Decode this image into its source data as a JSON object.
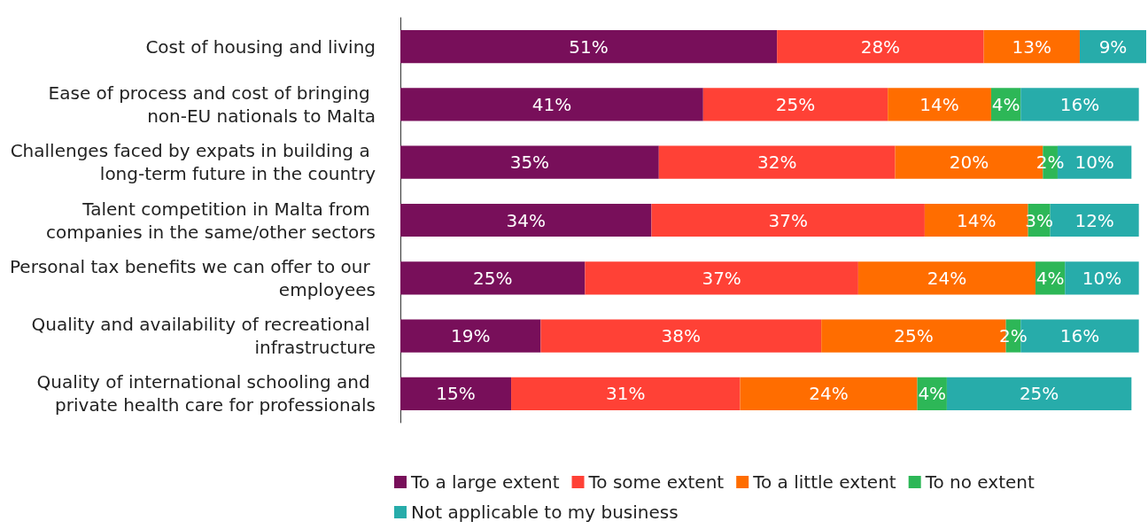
{
  "chart_data": {
    "type": "bar",
    "orientation": "horizontal",
    "stacked": true,
    "legend": "bottom",
    "categories": [
      "Cost of housing and living",
      "Ease of process and cost of bringing non-EU nationals to Malta",
      "Challenges faced by expats in building a long-term future in the country",
      "Talent competition in Malta from companies in the same/other sectors",
      "Personal tax benefits we can offer to our employees",
      "Quality and availability of recreational infrastructure",
      "Quality of international schooling and private health care for professionals"
    ],
    "series": [
      {
        "name": "To a large extent",
        "color": "#780f5a",
        "values": [
          51,
          41,
          35,
          34,
          25,
          19,
          15
        ],
        "value_labels": [
          "51%",
          "41%",
          "35%",
          "34%",
          "25%",
          "19%",
          "15%"
        ]
      },
      {
        "name": "To some extent",
        "color": "#ff4136",
        "values": [
          28,
          25,
          32,
          37,
          37,
          38,
          31
        ],
        "value_labels": [
          "28%",
          "25%",
          "32%",
          "37%",
          "37%",
          "38%",
          "31%"
        ]
      },
      {
        "name": "To a little extent",
        "color": "#ff6d00",
        "values": [
          13,
          14,
          20,
          14,
          24,
          25,
          24
        ],
        "value_labels": [
          "13%",
          "14%",
          "20%",
          "14%",
          "24%",
          "25%",
          "24%"
        ]
      },
      {
        "name": "To no extent",
        "color": "#2db757",
        "values": [
          null,
          4,
          2,
          3,
          4,
          2,
          4
        ],
        "value_labels": [
          null,
          "4%",
          "2%",
          "3%",
          "4%",
          "2%",
          "4%"
        ]
      },
      {
        "name": "Not applicable to my business",
        "color": "#27acaa",
        "values": [
          9,
          16,
          10,
          12,
          10,
          16,
          25
        ],
        "value_labels": [
          "9%",
          "16%",
          "10%",
          "12%",
          "10%",
          "16%",
          "25%"
        ]
      }
    ]
  }
}
